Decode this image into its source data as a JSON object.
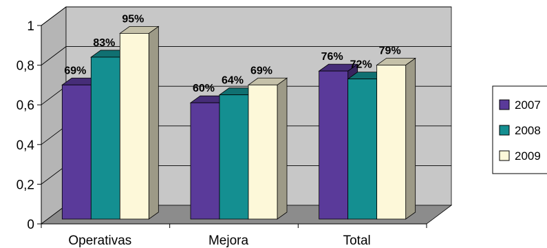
{
  "chart_data": {
    "type": "bar",
    "categories": [
      "Operativas",
      "Mejora",
      "Total"
    ],
    "series": [
      {
        "name": "2007",
        "values": [
          0.69,
          0.6,
          0.76
        ],
        "labels": [
          "69%",
          "60%",
          "76%"
        ],
        "color": "#5a3a9a"
      },
      {
        "name": "2008",
        "values": [
          0.83,
          0.64,
          0.72
        ],
        "labels": [
          "83%",
          "64%",
          "72%"
        ],
        "color": "#148f91"
      },
      {
        "name": "2009",
        "values": [
          0.95,
          0.69,
          0.79
        ],
        "labels": [
          "95%",
          "69%",
          "79%"
        ],
        "color": "#fdf8d9"
      }
    ],
    "yticks": [
      "0",
      "0,2",
      "0,4",
      "0,6",
      "0,8",
      "1"
    ],
    "ylim": [
      0,
      1
    ],
    "grid": true,
    "legend_position": "right",
    "title": "",
    "xlabel": "",
    "ylabel": "",
    "colors": {
      "wall": "#c7c7c7",
      "floor": "#8c8c8c",
      "side_wall": "#b5b5b5"
    }
  }
}
